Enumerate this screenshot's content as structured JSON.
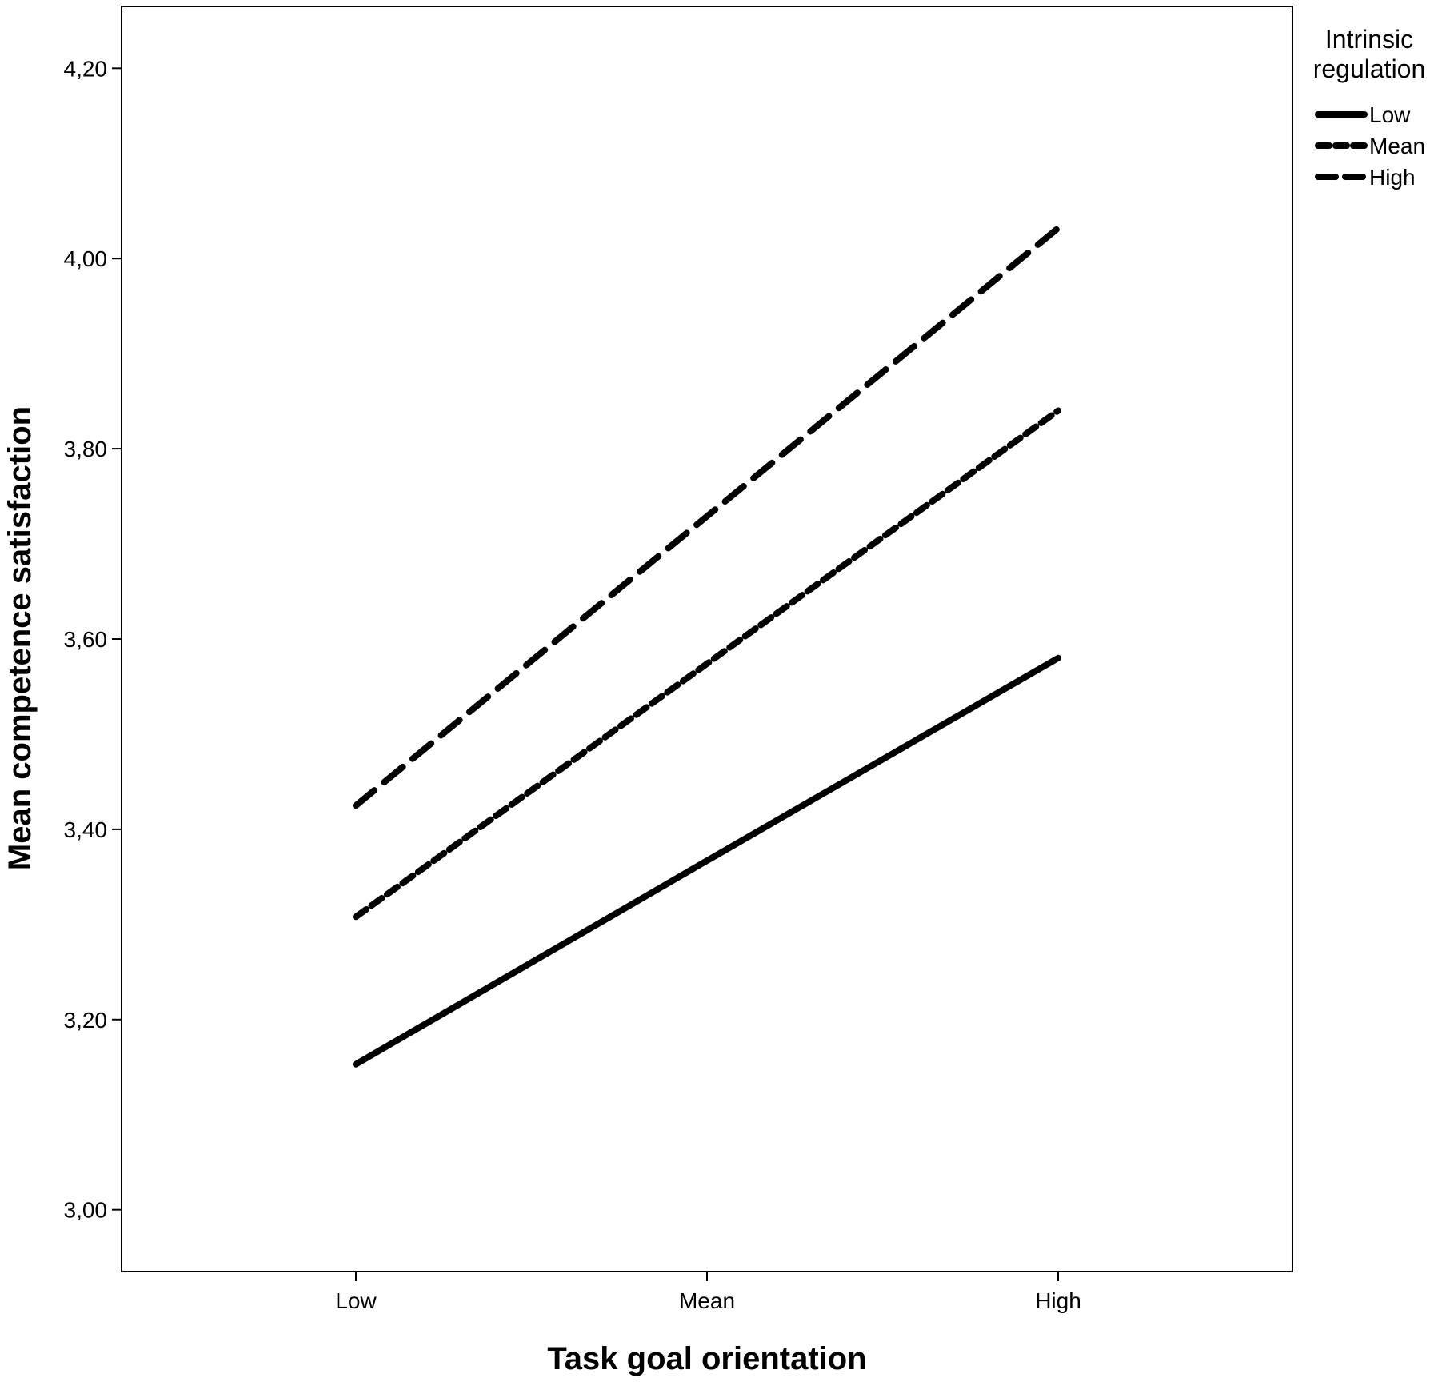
{
  "chart_data": {
    "type": "line",
    "title": "",
    "xlabel": "Task goal orientation",
    "ylabel": "Mean competence satisfaction",
    "categories": [
      "Low",
      "Mean",
      "High"
    ],
    "yticks": [
      "3,00",
      "3,20",
      "3,40",
      "3,60",
      "3,80",
      "4,00",
      "4,20"
    ],
    "ytick_values": [
      3.0,
      3.2,
      3.4,
      3.6,
      3.8,
      4.0,
      4.2
    ],
    "ylim": [
      2.935,
      4.265
    ],
    "grid": false,
    "legend": {
      "title_lines": [
        "Intrinsic",
        "regulation"
      ],
      "position": "top-right outside"
    },
    "series": [
      {
        "name": "Low",
        "values": [
          3.153,
          3.367,
          3.58
        ],
        "style": "solid",
        "color": "#000000"
      },
      {
        "name": "Mean",
        "values": [
          3.308,
          3.574,
          3.84
        ],
        "style": "dotted",
        "color": "#000000"
      },
      {
        "name": "High",
        "values": [
          3.425,
          3.729,
          4.032
        ],
        "style": "dashed",
        "color": "#000000"
      }
    ]
  }
}
